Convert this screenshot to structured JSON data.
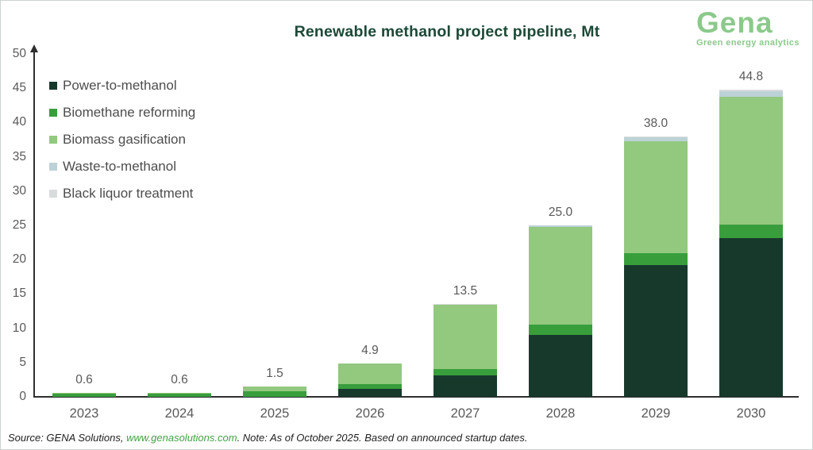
{
  "title": "Renewable methanol project pipeline, Mt",
  "title_color": "#1d4937",
  "logo": {
    "name": "Gena",
    "tagline": "Green energy analytics",
    "color": "#8cc98c"
  },
  "footer": {
    "source_prefix": "Source: GENA Solutions, ",
    "link": "www.genasolutions.com",
    "link_color": "#44a344",
    "note_suffix": ". Note: As of October 2025. Based on announced startup dates."
  },
  "chart_data": {
    "type": "bar",
    "stacked": true,
    "title": "Renewable methanol project pipeline, Mt",
    "xlabel": "",
    "ylabel": "Mt",
    "ylim": [
      0,
      50
    ],
    "ytick_step": 5,
    "yticks": [
      "0",
      "5",
      "10",
      "15",
      "20",
      "25",
      "30",
      "35",
      "40",
      "45",
      "50"
    ],
    "grid": false,
    "legend_position": "top-left",
    "categories": [
      "2023",
      "2024",
      "2025",
      "2026",
      "2027",
      "2028",
      "2029",
      "2030"
    ],
    "series": [
      {
        "name": "Power-to-methanol",
        "color": "#17392c",
        "values": [
          0,
          0,
          0,
          1.1,
          3.1,
          9.0,
          19.2,
          23.2
        ]
      },
      {
        "name": "Biomethane reforming",
        "color": "#389e3c",
        "values": [
          0.5,
          0.5,
          0.8,
          0.8,
          0.9,
          1.5,
          1.7,
          1.9
        ]
      },
      {
        "name": "Biomass gasification",
        "color": "#93c87f",
        "values": [
          0.1,
          0.1,
          0.7,
          3.0,
          9.4,
          14.3,
          16.4,
          18.6
        ]
      },
      {
        "name": "Waste-to-methanol",
        "color": "#bcd2d6",
        "values": [
          0,
          0,
          0,
          0,
          0,
          0.2,
          0.6,
          0.9
        ]
      },
      {
        "name": "Black liquor treatment",
        "color": "#d9dcdc",
        "values": [
          0,
          0,
          0,
          0,
          0.1,
          0,
          0.1,
          0.2
        ]
      }
    ],
    "totals": [
      0.6,
      0.6,
      1.5,
      4.9,
      13.5,
      25.0,
      38.0,
      44.8
    ],
    "total_labels": [
      "0.6",
      "0.6",
      "1.5",
      "4.9",
      "13.5",
      "25.0",
      "38.0",
      "44.8"
    ]
  }
}
